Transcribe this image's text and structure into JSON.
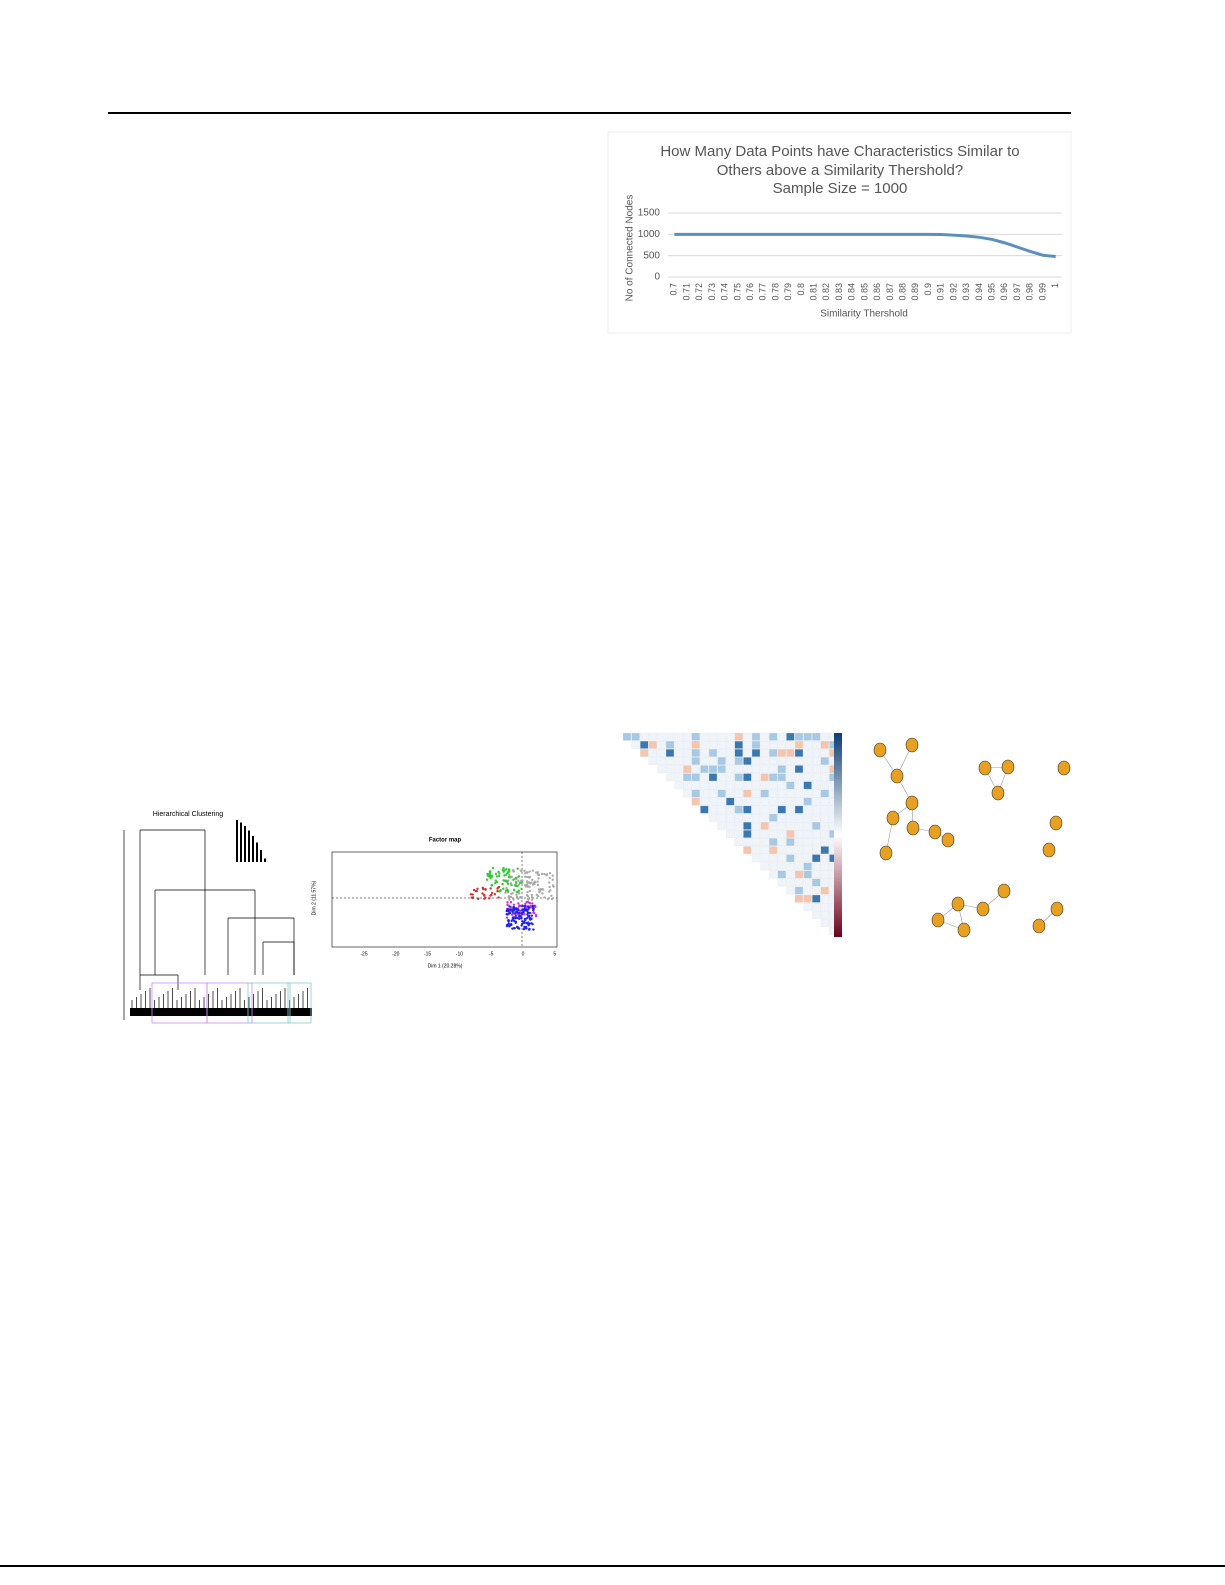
{
  "chart_data": {
    "type": "line",
    "title": "How Many Data Points have Characteristics Similar to Others above a Similarity Thershold?",
    "subtitle": "Sample Size = 1000",
    "x_label": "Similarity Thershold",
    "y_label": "No of Connected Nodes",
    "categories": [
      "0.7",
      "0.71",
      "0.72",
      "0.73",
      "0.74",
      "0.75",
      "0.76",
      "0.77",
      "0.78",
      "0.79",
      "0.8",
      "0.81",
      "0.82",
      "0.83",
      "0.84",
      "0.85",
      "0.86",
      "0.87",
      "0.88",
      "0.89",
      "0.9",
      "0.91",
      "0.92",
      "0.93",
      "0.94",
      "0.95",
      "0.96",
      "0.97",
      "0.98",
      "0.99",
      "1"
    ],
    "series": [
      {
        "name": "Connected Nodes",
        "color": "#5b8fbf",
        "values": [
          1000,
          1000,
          1000,
          1000,
          1000,
          1000,
          1000,
          1000,
          1000,
          1000,
          1000,
          1000,
          1000,
          1000,
          1000,
          1000,
          1000,
          1000,
          1000,
          1000,
          1000,
          995,
          980,
          960,
          930,
          880,
          800,
          700,
          600,
          510,
          480
        ]
      }
    ],
    "ylim": [
      0,
      1500
    ],
    "yticks": [
      0,
      500,
      1000,
      1500
    ],
    "grid": true
  },
  "figures": {
    "dendrogram": {
      "title": "Hierarchical Clustering"
    },
    "factor_map": {
      "title": "Factor map",
      "x_label": "Dim 1 (20.28%)",
      "y_label": "Dim 2 (11.57%)",
      "xticks": [
        -25,
        -20,
        -15,
        -10,
        -5,
        0,
        5
      ]
    }
  }
}
